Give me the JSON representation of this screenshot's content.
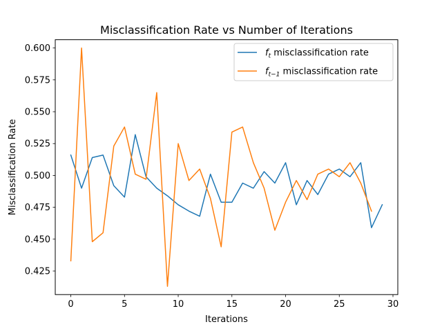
{
  "chart_data": {
    "type": "line",
    "title": "Misclassification Rate vs Number of Iterations",
    "xlabel": "Iterations",
    "ylabel": "Misclassification Rate",
    "xlim": [
      -1.45,
      30.45
    ],
    "ylim": [
      0.4065,
      0.6065
    ],
    "x_ticks": [
      0,
      5,
      10,
      15,
      20,
      25,
      30
    ],
    "y_ticks": [
      0.425,
      0.45,
      0.475,
      0.5,
      0.525,
      0.55,
      0.575,
      0.6
    ],
    "y_tick_labels": [
      "0.425",
      "0.450",
      "0.475",
      "0.500",
      "0.525",
      "0.550",
      "0.575",
      "0.600"
    ],
    "grid": false,
    "legend_position": "top-right",
    "series": [
      {
        "name_main": "f",
        "name_sub": "t",
        "name_rest": " misclassification rate",
        "color": "#1f77b4",
        "x": [
          0,
          1,
          2,
          3,
          4,
          5,
          6,
          7,
          8,
          9,
          10,
          11,
          12,
          13,
          14,
          15,
          16,
          17,
          18,
          19,
          20,
          21,
          22,
          23,
          24,
          25,
          26,
          27,
          28,
          29
        ],
        "values": [
          0.516,
          0.49,
          0.514,
          0.516,
          0.492,
          0.483,
          0.532,
          0.499,
          0.49,
          0.484,
          0.477,
          0.472,
          0.468,
          0.501,
          0.479,
          0.479,
          0.494,
          0.49,
          0.503,
          0.494,
          0.51,
          0.477,
          0.496,
          0.485,
          0.501,
          0.505,
          0.499,
          0.51,
          0.459,
          0.477
        ]
      },
      {
        "name_main": "f",
        "name_sub": "t−1",
        "name_rest": " misclassification rate",
        "color": "#ff7f0e",
        "x": [
          0,
          1,
          2,
          3,
          4,
          5,
          6,
          7,
          8,
          9,
          10,
          11,
          12,
          13,
          14,
          15,
          16,
          17,
          18,
          19,
          20,
          21,
          22,
          23,
          24,
          25,
          26,
          27,
          28
        ],
        "values": [
          0.433,
          0.6,
          0.448,
          0.455,
          0.523,
          0.538,
          0.501,
          0.497,
          0.565,
          0.413,
          0.525,
          0.496,
          0.505,
          0.482,
          0.444,
          0.534,
          0.538,
          0.51,
          0.49,
          0.457,
          0.479,
          0.496,
          0.481,
          0.501,
          0.505,
          0.499,
          0.51,
          0.494,
          0.472
        ]
      }
    ]
  }
}
